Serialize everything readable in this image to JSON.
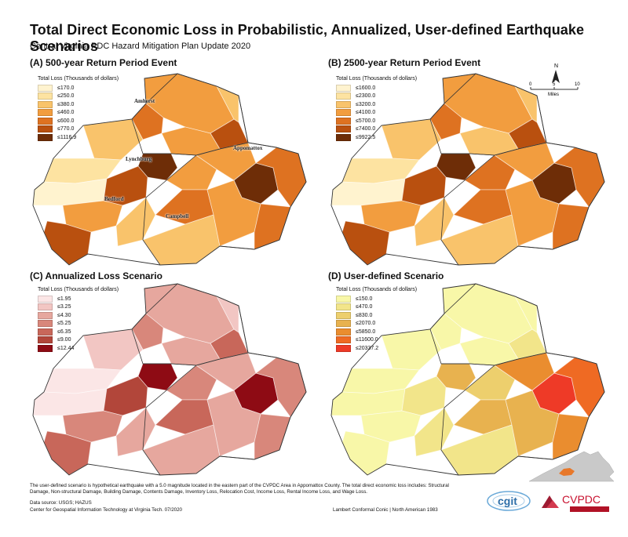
{
  "title": "Total Direct Economic Loss in Probabilistic, Annualized, User-defined Earthquake Scenarios",
  "subtitle": "Central Virginia PDC Hazard Mitigation Plan Update 2020",
  "panels": [
    {
      "title": "(A) 500-year Return Period Event",
      "legend_title": "Total Loss (Thousands of dollars)",
      "classes": [
        "≤170.0",
        "≤250.0",
        "≤380.0",
        "≤460.0",
        "≤600.0",
        "≤770.0",
        "≤1116.9"
      ],
      "colors": [
        "#fff3cf",
        "#fde3a1",
        "#f9c36b",
        "#f29d3f",
        "#de7221",
        "#b9500f",
        "#6e2d07"
      ]
    },
    {
      "title": "(B) 2500-year Return Period Event",
      "legend_title": "Total Loss (Thousands of dollars)",
      "classes": [
        "≤1600.0",
        "≤2300.0",
        "≤3200.0",
        "≤4100.0",
        "≤5700.0",
        "≤7400.0",
        "≤9922.5"
      ],
      "colors": [
        "#fff3cf",
        "#fde3a1",
        "#f9c36b",
        "#f29d3f",
        "#de7221",
        "#b9500f",
        "#6e2d07"
      ]
    },
    {
      "title": "(C) Annualized Loss Scenario",
      "legend_title": "Total Loss (Thousands of dollars)",
      "classes": [
        "≤1.95",
        "≤3.25",
        "≤4.30",
        "≤5.25",
        "≤6.35",
        "≤9.00",
        "≤12.44"
      ],
      "colors": [
        "#fbe6e6",
        "#f2c6c3",
        "#e6a79e",
        "#d8877b",
        "#c8675a",
        "#b2463a",
        "#8e0b14"
      ]
    },
    {
      "title": "(D) User-defined Scenario",
      "legend_title": "Total Loss (Thousands of dollars)",
      "classes": [
        "≤150.0",
        "≤470.0",
        "≤830.0",
        "≤2070.0",
        "≤5850.0",
        "≤11600.0",
        "≤20337.2"
      ],
      "colors": [
        "#f8f7a8",
        "#f2e58a",
        "#edcf6d",
        "#e8b24f",
        "#ea8d2f",
        "#ef6a23",
        "#ee3a27"
      ]
    }
  ],
  "place_labels": {
    "amherst": "Amherst",
    "appomattox": "Appomattox",
    "lynchburg": "Lynchburg",
    "bedford": "Bedford",
    "campbell": "Campbell"
  },
  "scale_bar": {
    "north": "N",
    "ticks": [
      "0",
      "5",
      "10"
    ],
    "unit": "Miles"
  },
  "footnote": "The user-defined scenario is hypothetical earthquake with a 5.0 magnitude located in the eastern part of the CVPDC Area in Appomattox County. The total direct economic loss includes: Structural Damage, Non-structural Damage, Building Damage, Contents Damage, Inventory Loss, Relocation Cost, Income Loss, Rental Income Loss, and Wage Loss.",
  "data_source": "Data source: USGS; HAZUS",
  "credit": "Center for Geospatial Information Technology at Virginia Tech. 07/2020",
  "projection": "Lambert Conformal Conic | North American 1983",
  "logos": {
    "cgit": "cgit",
    "cvpdc": "CVPDC"
  }
}
